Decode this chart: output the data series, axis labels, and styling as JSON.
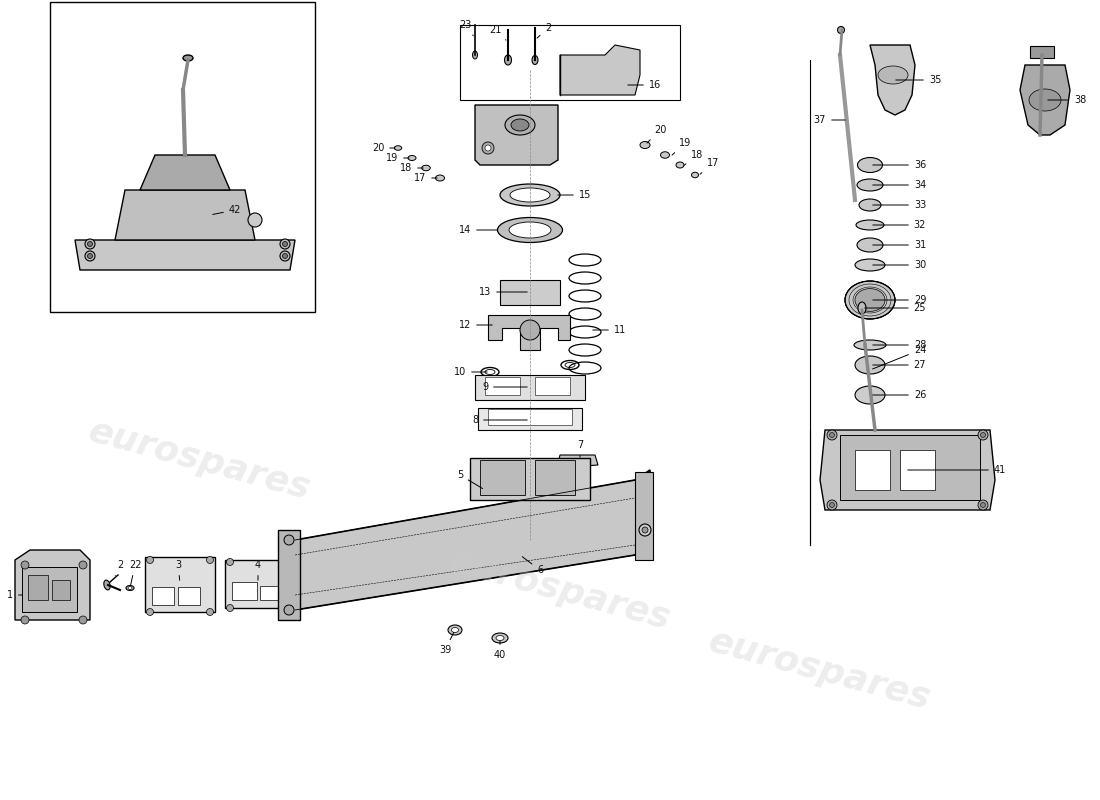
{
  "background_color": "#ffffff",
  "watermark_text": "eurospares",
  "watermark_color": "#cccccc",
  "watermark_alpha": 0.35,
  "line_color": "#000000",
  "drawing_color": "#111111"
}
